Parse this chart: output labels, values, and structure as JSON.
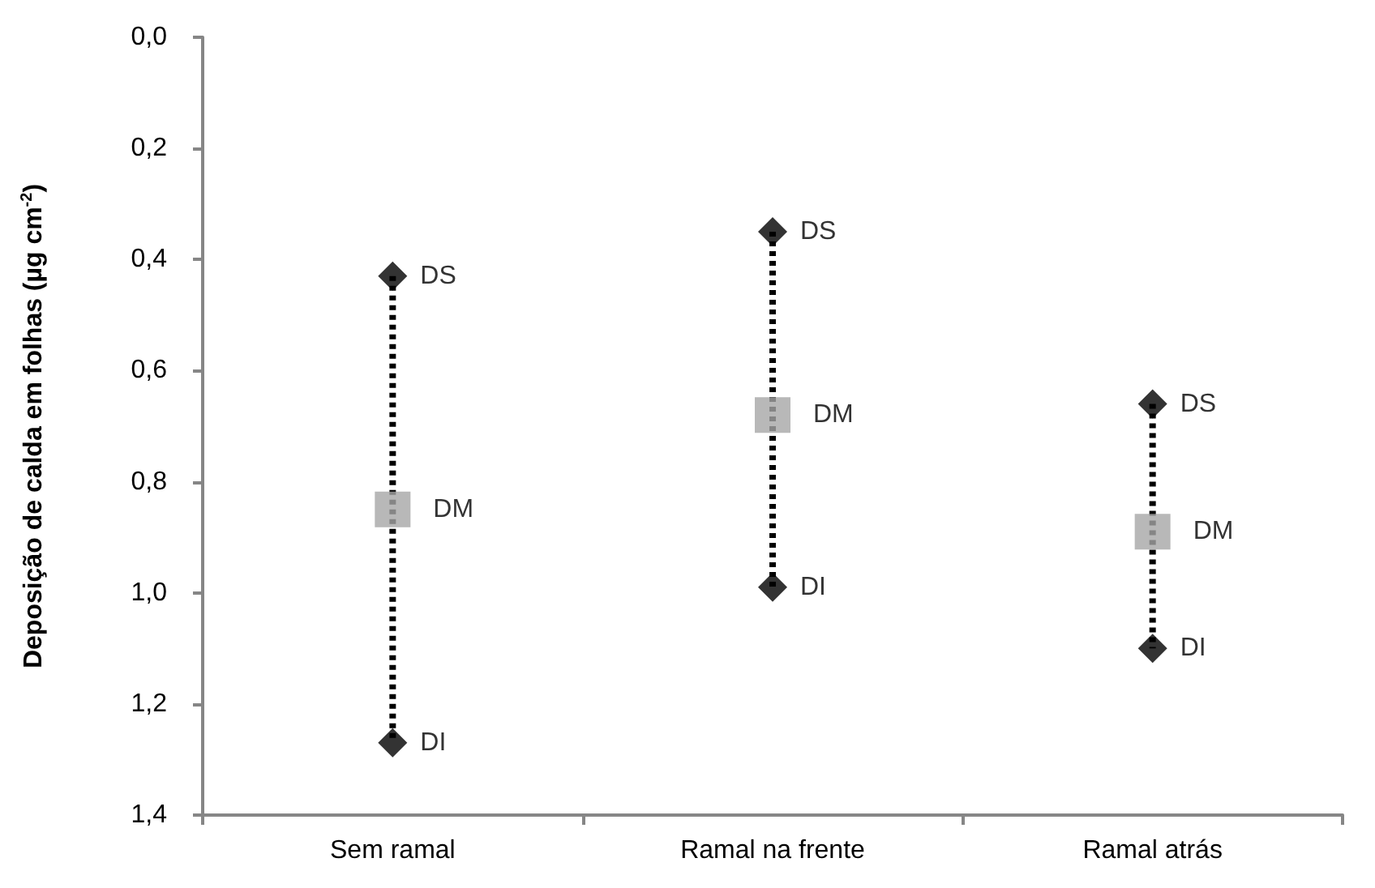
{
  "chart_data": {
    "type": "scatter",
    "ylabel": "Deposição de calda em folhas (µg cm$^{-2}$)",
    "categories": [
      "Sem ramal",
      "Ramal na frente",
      "Ramal atrás"
    ],
    "ylim": [
      1.4,
      0
    ],
    "yticks": [
      {
        "value": 0,
        "label": "0,0"
      },
      {
        "value": 0.2,
        "label": "0,2"
      },
      {
        "value": 0.4,
        "label": "0,4"
      },
      {
        "value": 0.6,
        "label": "0,6"
      },
      {
        "value": 0.8,
        "label": "0,8"
      },
      {
        "value": 1.0,
        "label": "1,0"
      },
      {
        "value": 1.2,
        "label": "1,2"
      },
      {
        "value": 1.4,
        "label": "1,4"
      }
    ],
    "grid": false,
    "legend": false,
    "series": [
      {
        "type": "line",
        "x": [
          "Sem ramal",
          "Sem ramal"
        ],
        "values": [
          0.43,
          1.27
        ],
        "color": "#000000",
        "line_style": "dotted",
        "marker": "none"
      },
      {
        "type": "line",
        "x": [
          "Ramal na frente",
          "Ramal na frente"
        ],
        "values": [
          0.35,
          0.99
        ],
        "color": "#000000",
        "line_style": "dotted",
        "marker": "none"
      },
      {
        "type": "line",
        "x": [
          "Ramal atrás",
          "Ramal atrás"
        ],
        "values": [
          0.66,
          1.1
        ],
        "color": "#000000",
        "line_style": "dotted",
        "marker": "none"
      },
      {
        "name": "DS",
        "values": [
          0.43,
          0.35,
          0.66
        ],
        "color": "#000000",
        "marker": "diamond"
      },
      {
        "name": "DM",
        "values": [
          0.85,
          0.68,
          0.89
        ],
        "color": "#a6a6a6",
        "marker": "square"
      },
      {
        "name": "DI",
        "values": [
          1.27,
          0.99,
          1.1
        ],
        "color": "#000000",
        "marker": "diamond"
      }
    ]
  }
}
